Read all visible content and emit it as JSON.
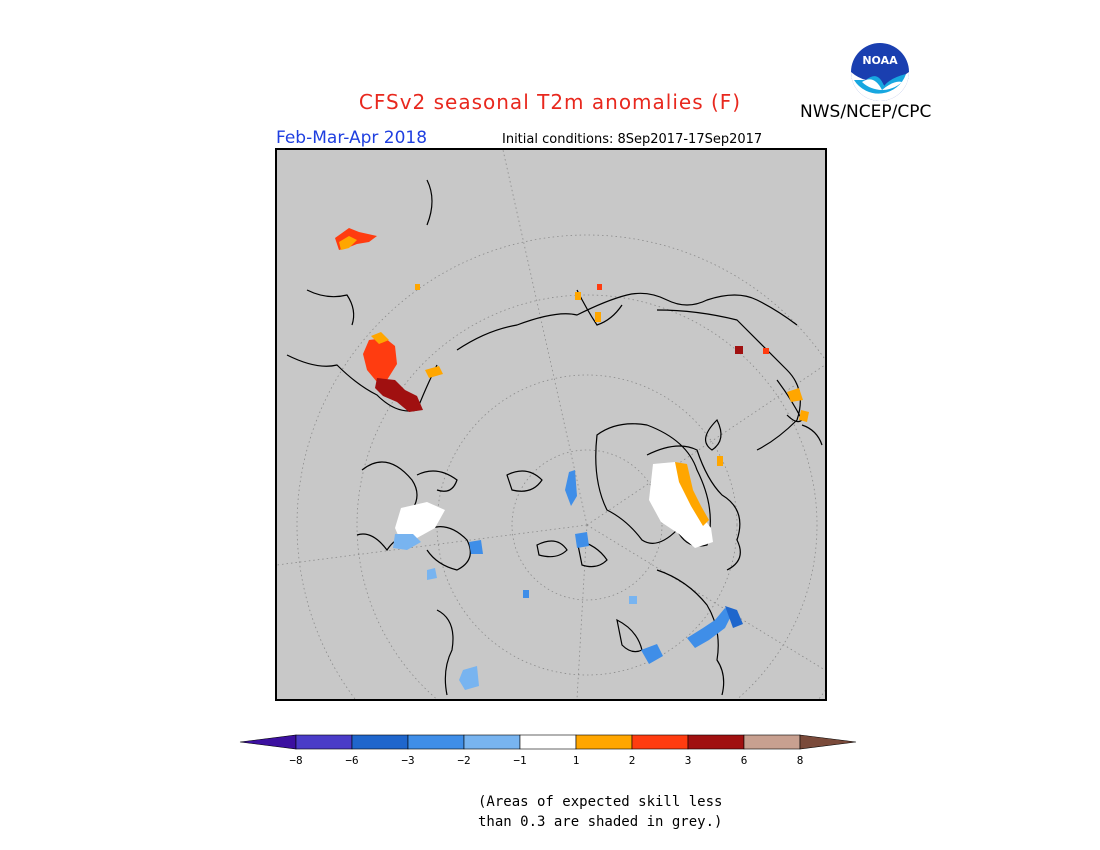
{
  "header": {
    "title": "CFSv2 seasonal T2m anomalies (F)",
    "agency": "NWS/NCEP/CPC",
    "logo_text": "NOAA",
    "period": "Feb-Mar-Apr 2018",
    "initial_conditions": "Initial conditions: 8Sep2017-17Sep2017"
  },
  "colorbar": {
    "ticks": [
      "−8",
      "−6",
      "−3",
      "−2",
      "−1",
      "1",
      "2",
      "3",
      "6",
      "8"
    ],
    "colors": [
      "#3c10a0",
      "#4a3cc8",
      "#1f66cc",
      "#3f8ee8",
      "#78b4f0",
      "#ffffff",
      "#ffa600",
      "#ff3c10",
      "#a01010",
      "#c8a090",
      "#7a4a3a"
    ]
  },
  "note": {
    "line1": "(Areas of expected skill less",
    "line2": "than 0.3 are shaded in grey.)"
  },
  "map": {
    "projection": "north polar stereographic",
    "background_color": "#c8c8c8"
  }
}
